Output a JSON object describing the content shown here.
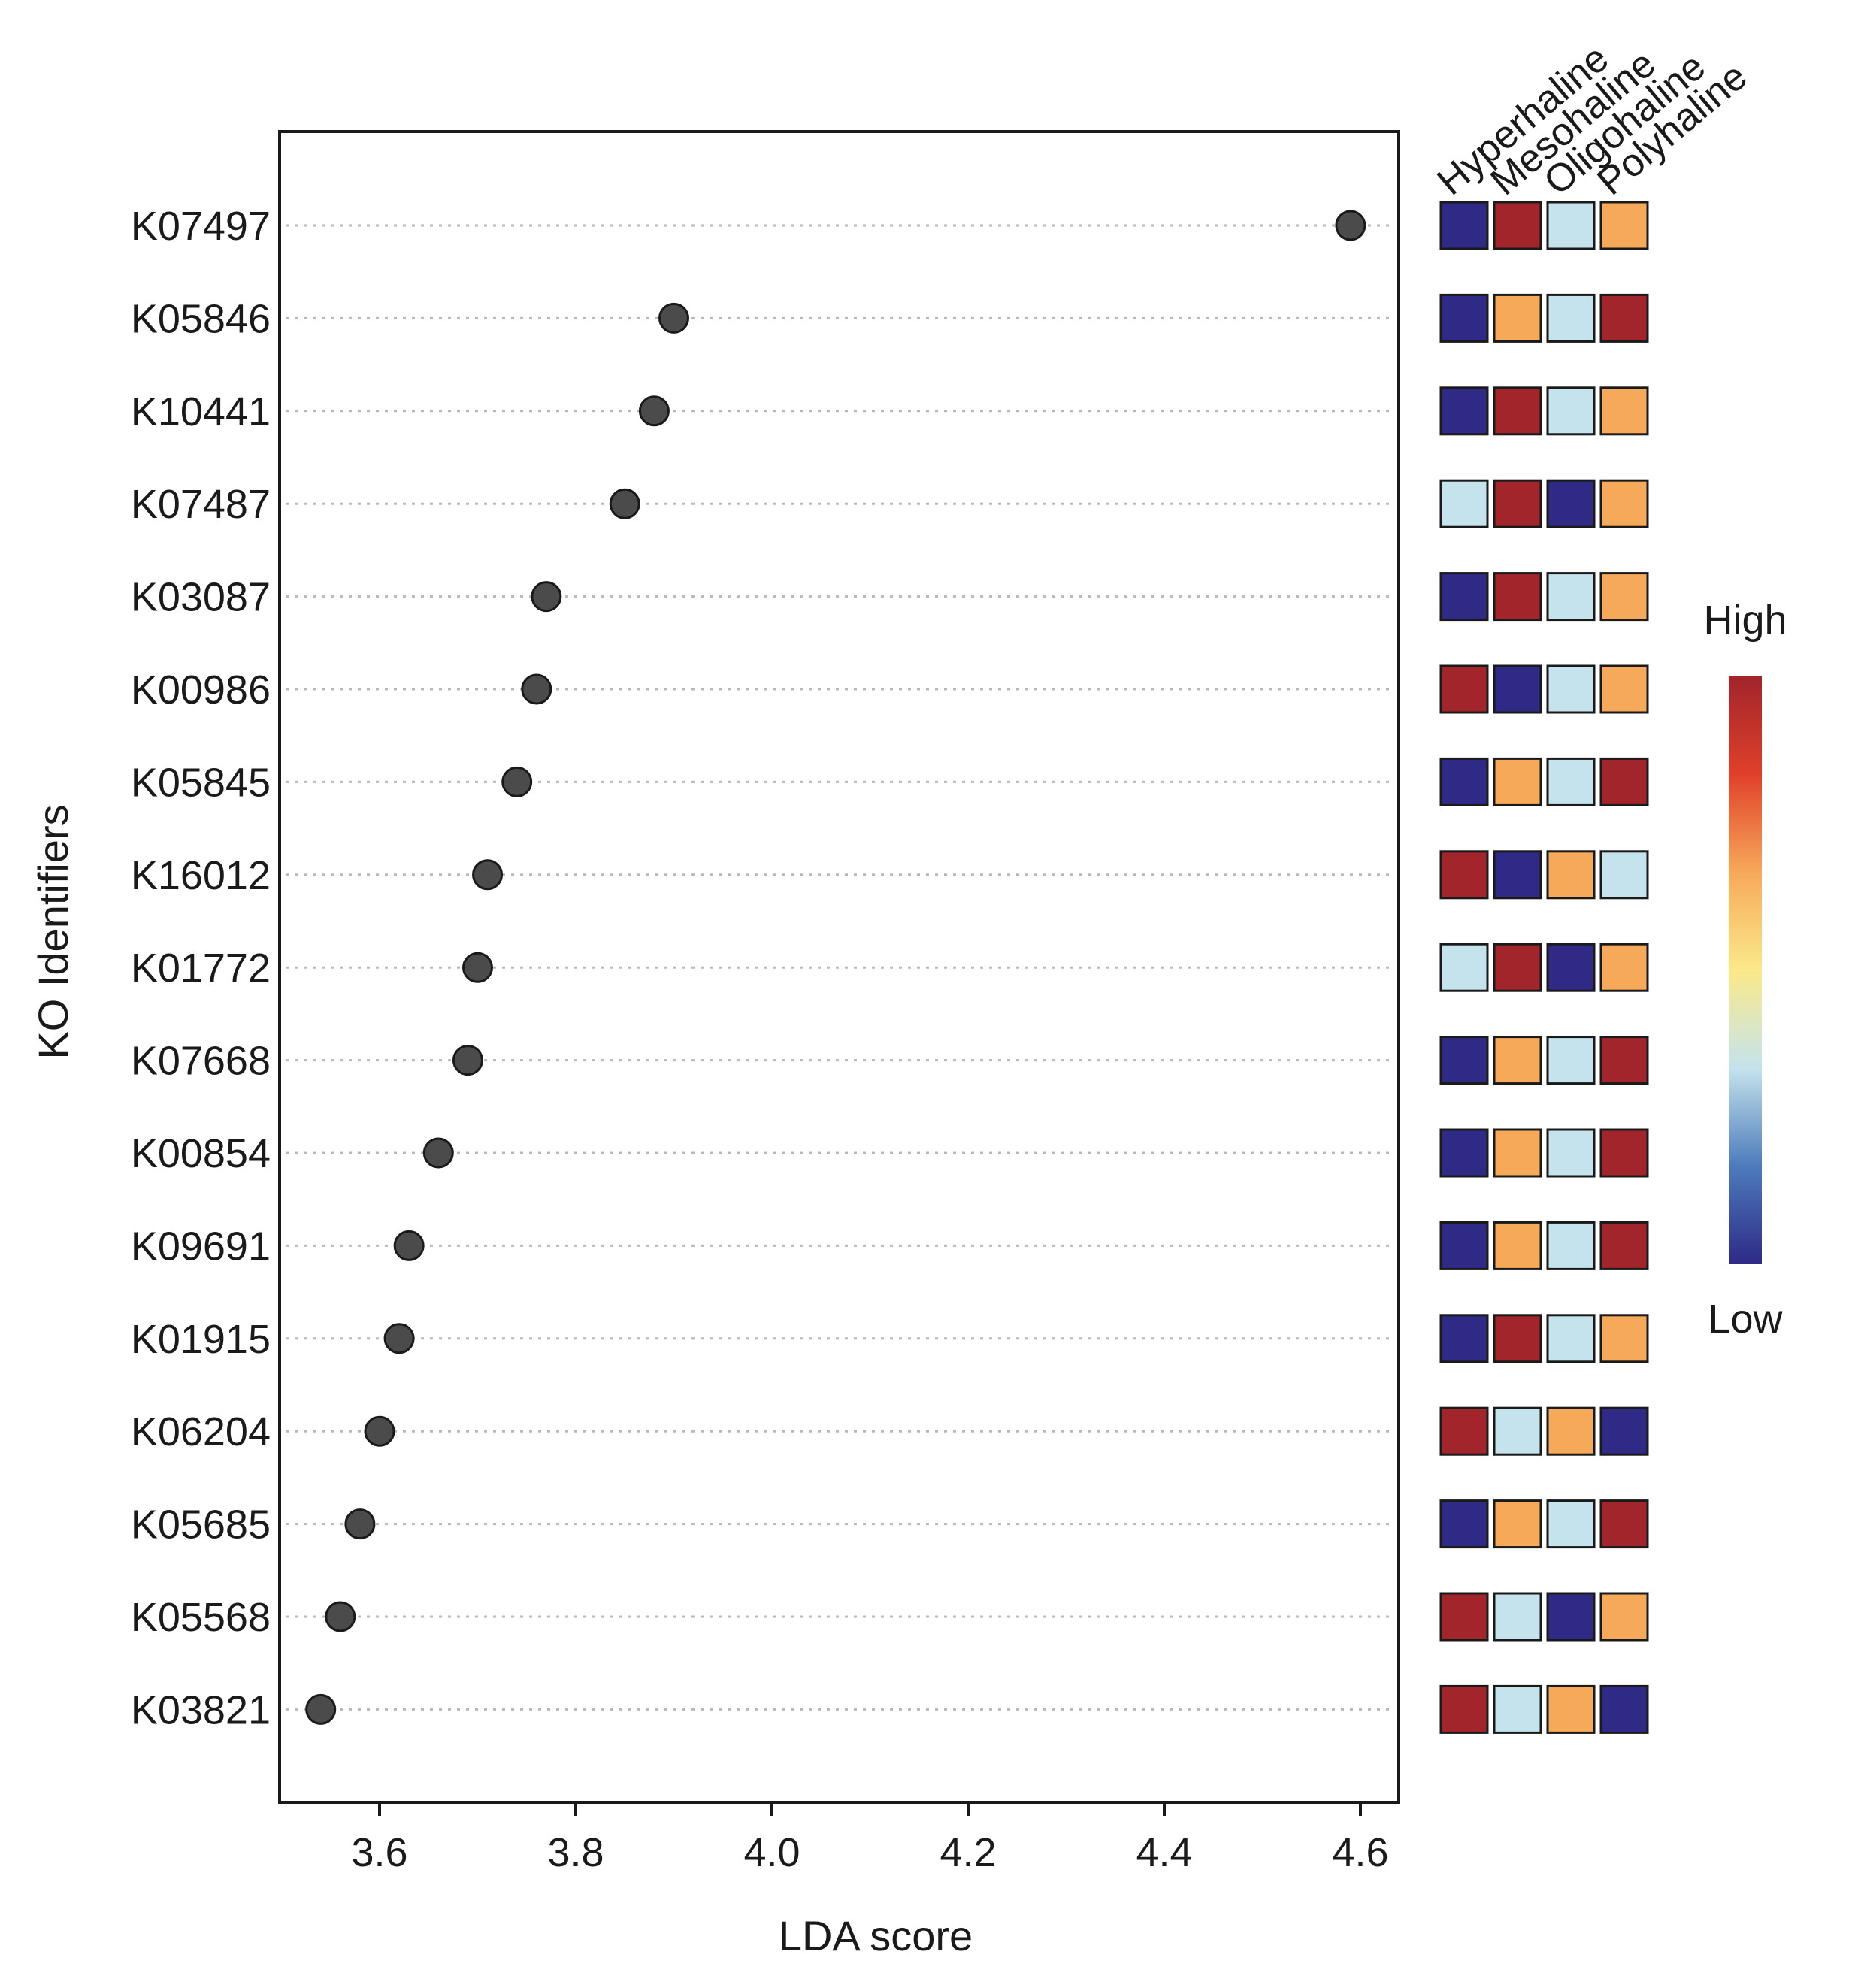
{
  "chart_data": {
    "type": "scatter",
    "subtype": "lollipop-dot-plot-with-heatmap",
    "title": "",
    "xlabel": "LDA score",
    "ylabel": "KO Identifiers",
    "xlim": [
      3.5,
      4.64
    ],
    "xticks": [
      3.6,
      3.8,
      4.0,
      4.2,
      4.4,
      4.6
    ],
    "xtick_labels": [
      "3.6",
      "3.8",
      "4.0",
      "4.2",
      "4.4",
      "4.6"
    ],
    "grid": "horizontal dotted",
    "categories": [
      "K07497",
      "K05846",
      "K10441",
      "K07487",
      "K03087",
      "K00986",
      "K05845",
      "K16012",
      "K01772",
      "K07668",
      "K00854",
      "K09691",
      "K01915",
      "K06204",
      "K05685",
      "K05568",
      "K03821"
    ],
    "values": [
      4.59,
      3.9,
      3.88,
      3.85,
      3.77,
      3.76,
      3.74,
      3.71,
      3.7,
      3.69,
      3.66,
      3.63,
      3.62,
      3.6,
      3.58,
      3.56,
      3.54
    ],
    "heatmap": {
      "groups": [
        "Hyperhaline",
        "Mesohaline",
        "Oligohaline",
        "Polyhaline"
      ],
      "levels": {
        "lowest": "#2e2a86",
        "low": "#c4e3ec",
        "high": "#f7a95a",
        "highest": "#a1252b"
      },
      "rows": [
        [
          "lowest",
          "highest",
          "low",
          "high"
        ],
        [
          "lowest",
          "high",
          "low",
          "highest"
        ],
        [
          "lowest",
          "highest",
          "low",
          "high"
        ],
        [
          "low",
          "highest",
          "lowest",
          "high"
        ],
        [
          "lowest",
          "highest",
          "low",
          "high"
        ],
        [
          "highest",
          "lowest",
          "low",
          "high"
        ],
        [
          "lowest",
          "high",
          "low",
          "highest"
        ],
        [
          "highest",
          "lowest",
          "high",
          "low"
        ],
        [
          "low",
          "highest",
          "lowest",
          "high"
        ],
        [
          "lowest",
          "high",
          "low",
          "highest"
        ],
        [
          "lowest",
          "high",
          "low",
          "highest"
        ],
        [
          "lowest",
          "high",
          "low",
          "highest"
        ],
        [
          "lowest",
          "highest",
          "low",
          "high"
        ],
        [
          "highest",
          "low",
          "high",
          "lowest"
        ],
        [
          "lowest",
          "high",
          "low",
          "highest"
        ],
        [
          "highest",
          "low",
          "lowest",
          "high"
        ],
        [
          "highest",
          "low",
          "high",
          "lowest"
        ]
      ]
    },
    "legend": {
      "high_label": "High",
      "low_label": "Low",
      "gradient_colors": [
        "#a1252b",
        "#e0402a",
        "#f7a95a",
        "#fbe98a",
        "#c4e3ec",
        "#4d7bbb",
        "#2e2a86"
      ]
    },
    "colors": {
      "dot_fill": "#4a4b4a",
      "dot_stroke": "#1a1a1a",
      "grid": "#b8b8b8",
      "axis": "#1a1a1a"
    }
  }
}
